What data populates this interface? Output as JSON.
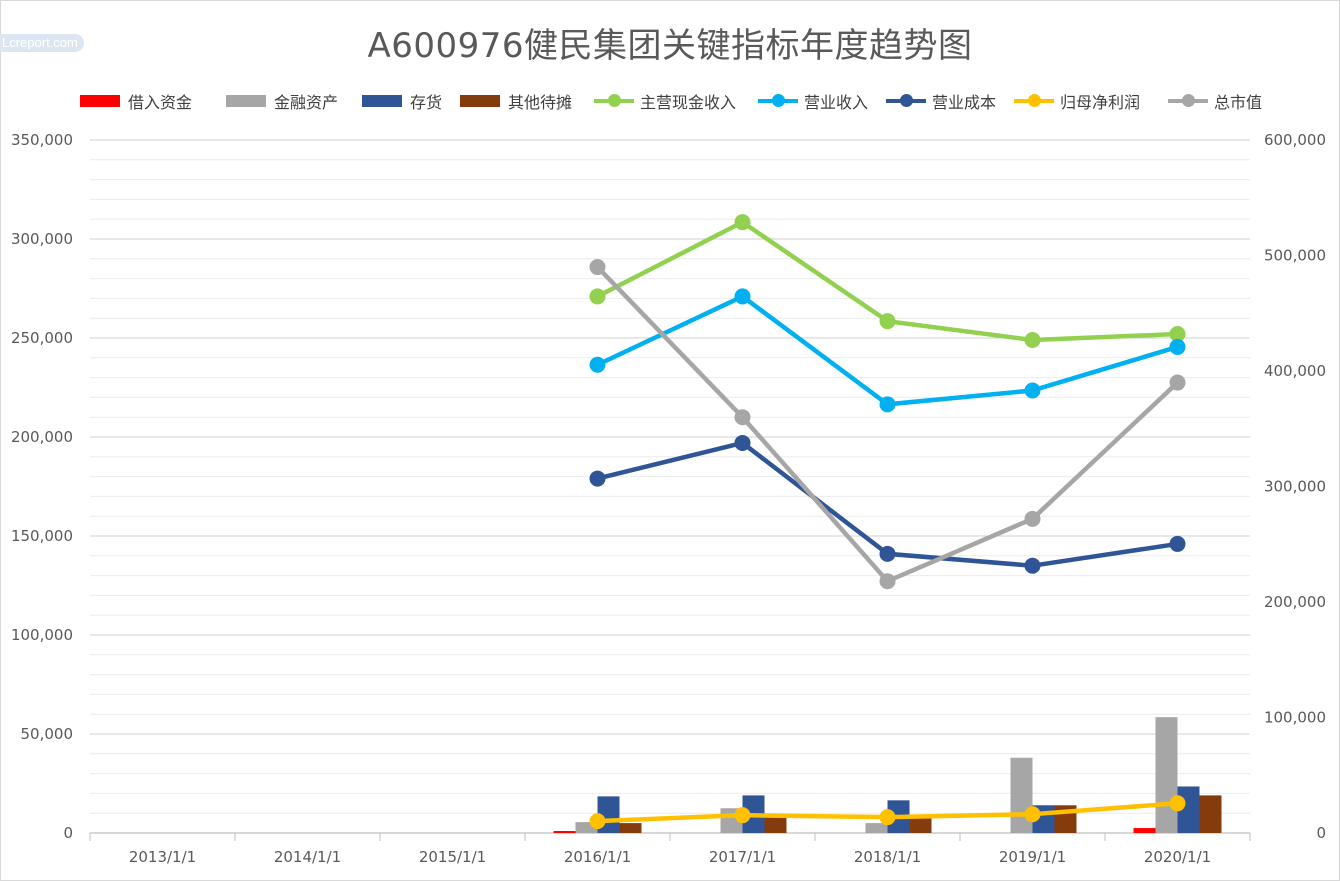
{
  "title": "A600976健民集团关键指标年度趋势图",
  "watermark": "Lcreport.com",
  "colors": {
    "borrow": "#ff0000",
    "financial": "#a6a6a6",
    "inventory": "#2f5597",
    "other": "#843c0c",
    "cash": "#92d050",
    "revenue": "#00b0f0",
    "cost": "#2f5597",
    "profit": "#ffc000",
    "mktcap": "#a6a6a6",
    "grid": "#d9d9d9"
  },
  "legend": [
    {
      "label": "借入资金",
      "kind": "bar",
      "color": "#ff0000"
    },
    {
      "label": "金融资产",
      "kind": "bar",
      "color": "#a6a6a6"
    },
    {
      "label": "存货",
      "kind": "bar",
      "color": "#2f5597"
    },
    {
      "label": "其他待摊",
      "kind": "bar",
      "color": "#843c0c"
    },
    {
      "label": "主营现金收入",
      "kind": "line",
      "color": "#92d050"
    },
    {
      "label": "营业收入",
      "kind": "line",
      "color": "#00b0f0"
    },
    {
      "label": "营业成本",
      "kind": "line",
      "color": "#2f5597"
    },
    {
      "label": "归母净利润",
      "kind": "line",
      "color": "#ffc000"
    },
    {
      "label": "总市值",
      "kind": "line",
      "color": "#a6a6a6"
    }
  ],
  "chart_data": {
    "type": "bar",
    "title": "A600976健民集团关键指标年度趋势图",
    "categories": [
      "2013/1/1",
      "2014/1/1",
      "2015/1/1",
      "2016/1/1",
      "2017/1/1",
      "2018/1/1",
      "2019/1/1",
      "2020/1/1"
    ],
    "y_left": {
      "min": 0,
      "max": 350000,
      "ticks": [
        "0",
        "50,000",
        "100,000",
        "150,000",
        "200,000",
        "250,000",
        "300,000",
        "350,000"
      ]
    },
    "y_right": {
      "min": 0,
      "max": 600000,
      "ticks": [
        "0",
        "100,000",
        "200,000",
        "300,000",
        "400,000",
        "500,000",
        "600,000"
      ]
    },
    "grid": true,
    "legend_position": "top",
    "bar_series": [
      {
        "name": "借入资金",
        "color": "#ff0000",
        "values": [
          null,
          null,
          null,
          1000,
          0,
          0,
          0,
          2500
        ]
      },
      {
        "name": "金融资产",
        "color": "#a6a6a6",
        "values": [
          null,
          null,
          null,
          5500,
          12500,
          5000,
          38000,
          58500
        ]
      },
      {
        "name": "存货",
        "color": "#2f5597",
        "values": [
          null,
          null,
          null,
          18500,
          19000,
          16500,
          14000,
          23500
        ]
      },
      {
        "name": "其他待摊",
        "color": "#843c0c",
        "values": [
          null,
          null,
          null,
          5000,
          8000,
          8000,
          14000,
          19000
        ]
      }
    ],
    "line_series": [
      {
        "name": "主营现金收入",
        "axis": "left",
        "color": "#92d050",
        "values": [
          null,
          null,
          null,
          271000,
          308500,
          258500,
          249000,
          252000
        ]
      },
      {
        "name": "营业收入",
        "axis": "left",
        "color": "#00b0f0",
        "values": [
          null,
          null,
          null,
          236500,
          271000,
          216500,
          223500,
          245500
        ]
      },
      {
        "name": "营业成本",
        "axis": "left",
        "color": "#2f5597",
        "values": [
          null,
          null,
          null,
          179000,
          197000,
          141000,
          135000,
          146000
        ]
      },
      {
        "name": "归母净利润",
        "axis": "left",
        "color": "#ffc000",
        "values": [
          null,
          null,
          null,
          6000,
          9000,
          8000,
          9500,
          15000
        ]
      },
      {
        "name": "总市值",
        "axis": "right",
        "color": "#a6a6a6",
        "values": [
          null,
          null,
          null,
          490000,
          360000,
          218000,
          272000,
          390000
        ]
      }
    ]
  }
}
